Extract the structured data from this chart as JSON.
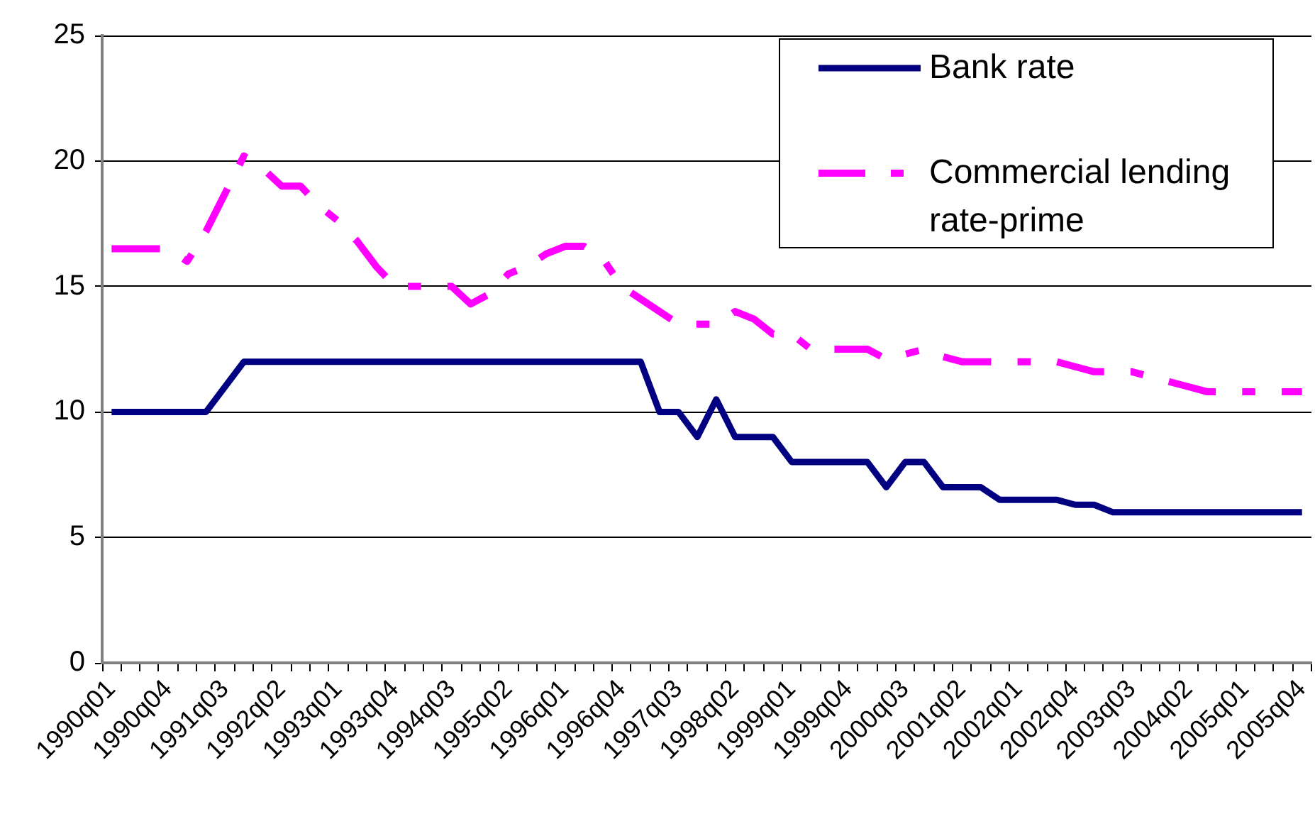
{
  "chart_data": {
    "type": "line",
    "categories": [
      "1990q01",
      null,
      null,
      "1990q04",
      null,
      null,
      "1991q03",
      null,
      null,
      "1992q02",
      null,
      null,
      "1993q01",
      null,
      null,
      "1993q04",
      null,
      null,
      "1994q03",
      null,
      null,
      "1995q02",
      null,
      null,
      "1996q01",
      null,
      null,
      "1996q04",
      null,
      null,
      "1997q03",
      null,
      null,
      "1998q02",
      null,
      null,
      "1999q01",
      null,
      null,
      "1999q04",
      null,
      null,
      "2000q03",
      null,
      null,
      "2001q02",
      null,
      null,
      "2002q01",
      null,
      null,
      "2002q04",
      null,
      null,
      "2003q03",
      null,
      null,
      "2004q02",
      null,
      null,
      "2005q01",
      null,
      null,
      "2005q04"
    ],
    "series": [
      {
        "name": "Bank rate",
        "color": "#000080",
        "line_style": "solid",
        "values": [
          10,
          10,
          10,
          10,
          10,
          10,
          11,
          12,
          12,
          12,
          12,
          12,
          12,
          12,
          12,
          12,
          12,
          12,
          12,
          12,
          12,
          12,
          12,
          12,
          12,
          12,
          12,
          12,
          12,
          10,
          10,
          9,
          10.5,
          9,
          9,
          9,
          8,
          8,
          8,
          8,
          8,
          7,
          8,
          8,
          7,
          7,
          7,
          6.5,
          6.5,
          6.5,
          6.5,
          6.3,
          6.3,
          6,
          6,
          6,
          6,
          6,
          6,
          6,
          6,
          6,
          6,
          6
        ]
      },
      {
        "name": "Commercial lending rate-prime",
        "color": "#ff00ff",
        "line_style": "dashed",
        "values": [
          16.5,
          16.5,
          16.5,
          16.5,
          16,
          17.2,
          18.7,
          20.2,
          19.7,
          19,
          19,
          18.2,
          17.6,
          16.8,
          15.8,
          15,
          15,
          15,
          15,
          14.3,
          14.7,
          15.5,
          15.8,
          16.3,
          16.6,
          16.6,
          16.1,
          15,
          14.5,
          14,
          13.5,
          13.5,
          13.5,
          14,
          13.7,
          13.1,
          13.1,
          12.5,
          12.5,
          12.5,
          12.5,
          12.1,
          12.3,
          12.5,
          12.2,
          12,
          12,
          12,
          12,
          12,
          12,
          11.8,
          11.6,
          11.6,
          11.6,
          11.4,
          11.2,
          11,
          10.8,
          10.8,
          10.8,
          10.8,
          10.8,
          10.8
        ]
      }
    ],
    "ylim": [
      0,
      25
    ],
    "yticks": [
      0,
      5,
      10,
      15,
      20,
      25
    ],
    "grid": "y",
    "legend": "top right",
    "marker": "none"
  }
}
